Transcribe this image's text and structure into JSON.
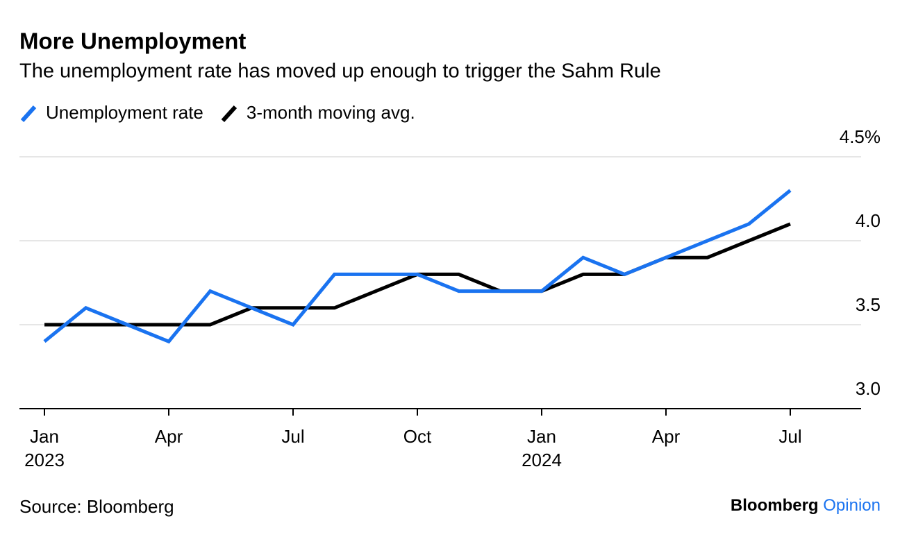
{
  "chart_data": {
    "type": "line",
    "title": "More Unemployment",
    "subtitle": "The unemployment rate has moved up enough to trigger the Sahm Rule",
    "x": [
      "2023-01",
      "2023-02",
      "2023-03",
      "2023-04",
      "2023-05",
      "2023-06",
      "2023-07",
      "2023-08",
      "2023-09",
      "2023-10",
      "2023-11",
      "2023-12",
      "2024-01",
      "2024-02",
      "2024-03",
      "2024-04",
      "2024-05",
      "2024-06",
      "2024-07"
    ],
    "series": [
      {
        "name": "Unemployment rate",
        "color": "#1a73f0",
        "values": [
          3.4,
          3.6,
          3.5,
          3.4,
          3.7,
          3.6,
          3.5,
          3.8,
          3.8,
          3.8,
          3.7,
          3.7,
          3.7,
          3.9,
          3.8,
          3.9,
          4.0,
          4.1,
          4.3
        ]
      },
      {
        "name": "3-month moving avg.",
        "color": "#000000",
        "values": [
          3.5,
          3.5,
          3.5,
          3.5,
          3.5,
          3.6,
          3.6,
          3.6,
          3.7,
          3.8,
          3.8,
          3.7,
          3.7,
          3.8,
          3.8,
          3.9,
          3.9,
          4.0,
          4.1
        ]
      }
    ],
    "ylim": [
      3.0,
      4.5
    ],
    "yticks": [
      {
        "value": 3,
        "label": "3.0"
      },
      3.5,
      {
        "value": 4,
        "label": "4.0"
      },
      {
        "value": 4.5,
        "label": "4.5%"
      }
    ],
    "xticks": [
      {
        "value": "2023-01",
        "label": "Jan 2023"
      },
      {
        "value": "2023-04",
        "label": "Apr"
      },
      {
        "value": "2023-07",
        "label": "Jul"
      },
      {
        "value": "2023-10",
        "label": "Oct"
      },
      {
        "value": "2024-01",
        "label": "Jan 2024"
      },
      {
        "value": "2024-04",
        "label": "Apr"
      },
      {
        "value": "2024-07",
        "label": "Jul"
      }
    ],
    "grid": true,
    "source": "Source: Bloomberg",
    "brand": {
      "name": "Bloomberg",
      "section": "Opinion"
    }
  }
}
